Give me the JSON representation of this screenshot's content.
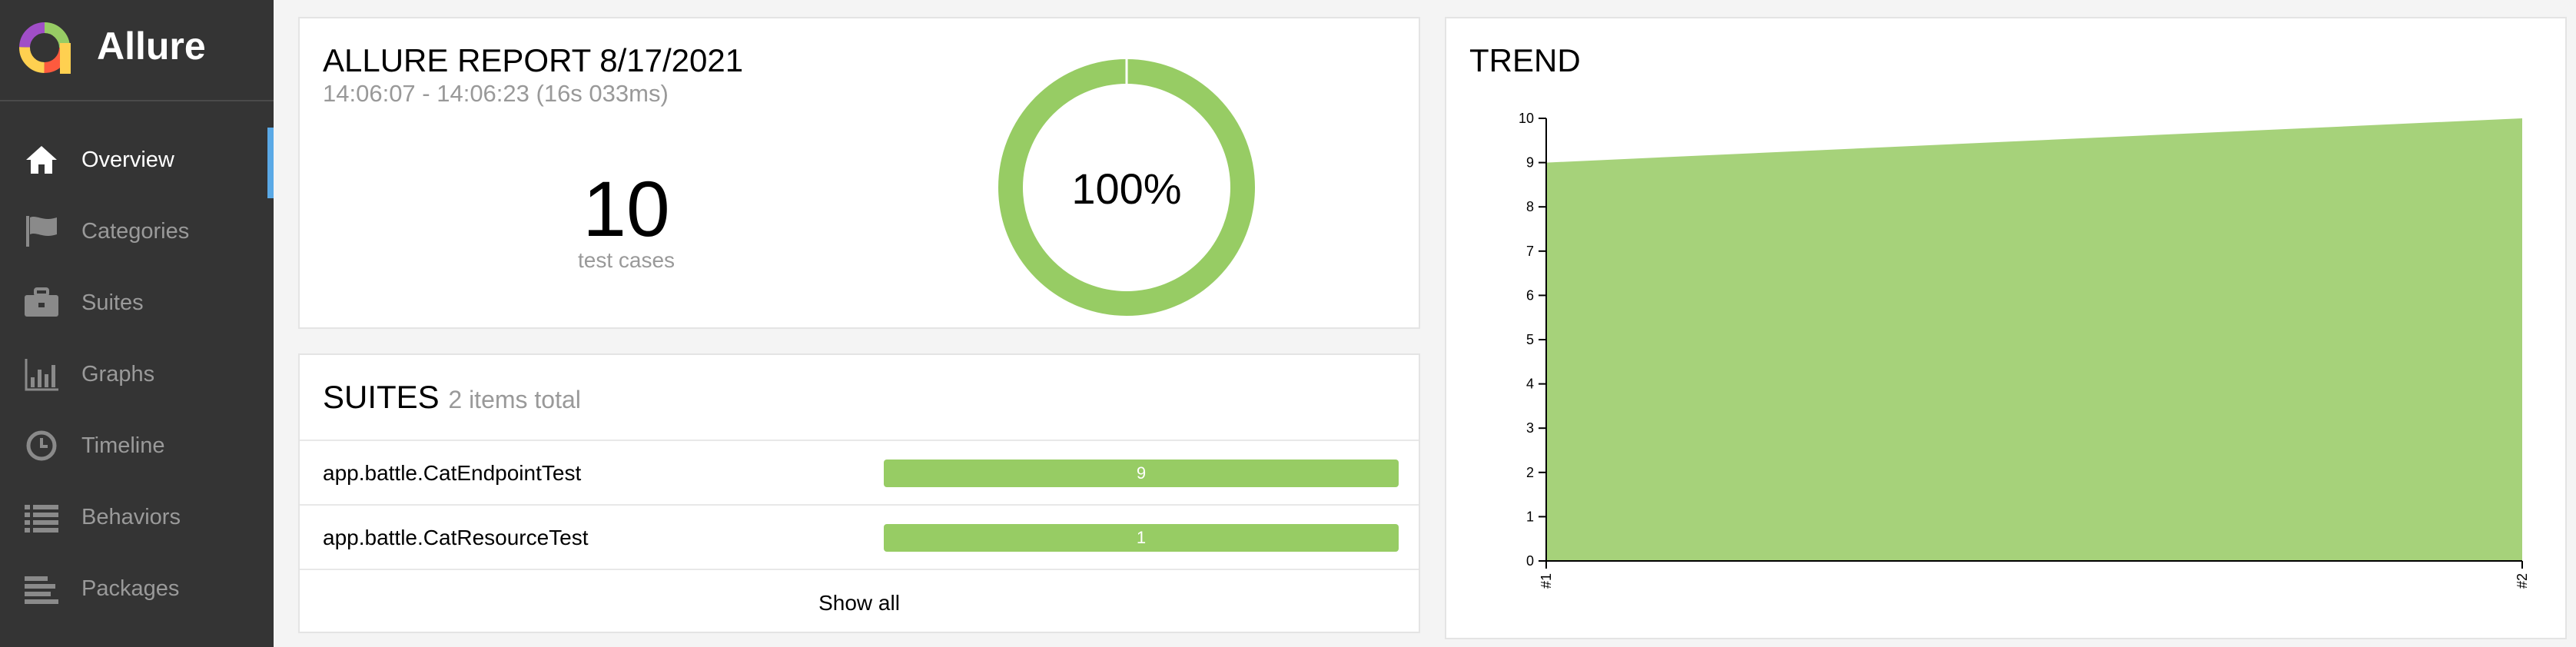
{
  "sidebar": {
    "brand": "Allure",
    "items": [
      {
        "label": "Overview",
        "icon": "home-icon",
        "active": true
      },
      {
        "label": "Categories",
        "icon": "flag-icon"
      },
      {
        "label": "Suites",
        "icon": "briefcase-icon"
      },
      {
        "label": "Graphs",
        "icon": "bar-chart-icon"
      },
      {
        "label": "Timeline",
        "icon": "clock-icon"
      },
      {
        "label": "Behaviors",
        "icon": "list-icon"
      },
      {
        "label": "Packages",
        "icon": "align-left-icon"
      }
    ]
  },
  "summary": {
    "title": "ALLURE REPORT 8/17/2021",
    "time": "14:06:07 - 14:06:23 (16s 033ms)",
    "count": "10",
    "count_label": "test cases",
    "percent_label": "100%",
    "passed_fraction": 1.0
  },
  "suites": {
    "title": "SUITES",
    "subtitle": "2 items total",
    "rows": [
      {
        "name": "app.battle.CatEndpointTest",
        "value": "9"
      },
      {
        "name": "app.battle.CatResourceTest",
        "value": "1"
      }
    ],
    "show_all": "Show all"
  },
  "trend": {
    "title": "TREND"
  },
  "chart_data": {
    "type": "area",
    "title": "TREND",
    "x": [
      "#1",
      "#2"
    ],
    "series": [
      {
        "values": [
          9,
          10
        ]
      }
    ],
    "ylim": [
      0,
      10
    ],
    "yticks": [
      0,
      1,
      2,
      3,
      4,
      5,
      6,
      7,
      8,
      9,
      10
    ],
    "grid": false
  },
  "colors": {
    "passed": "#97cc64",
    "area": "#a6d27a",
    "sidebar": "#343434",
    "active_marker": "#5aa9e6"
  }
}
